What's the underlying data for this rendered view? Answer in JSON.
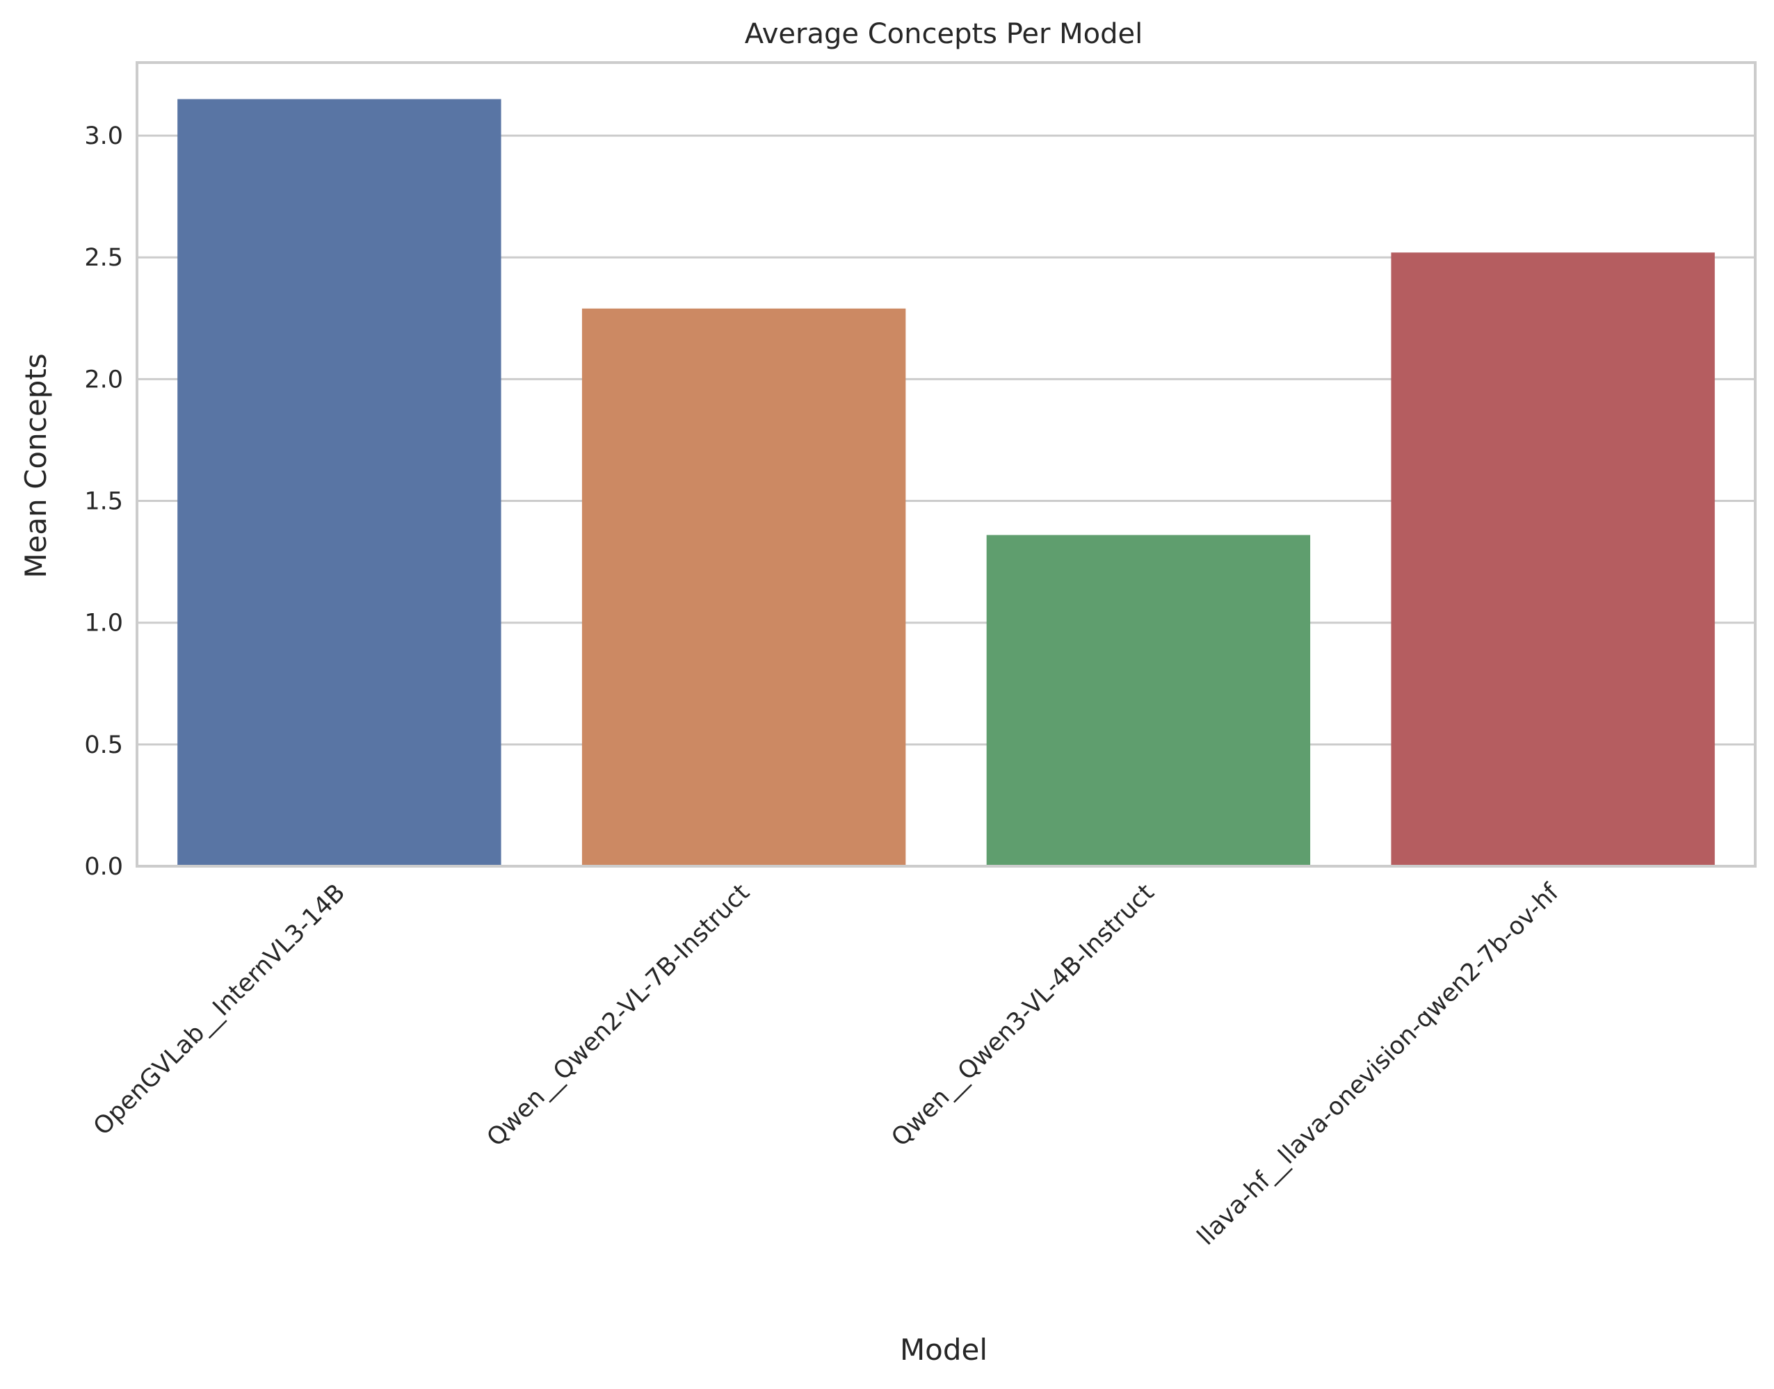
{
  "chart_data": {
    "type": "bar",
    "title": "Average Concepts Per Model",
    "xlabel": "Model",
    "ylabel": "Mean Concepts",
    "categories": [
      "OpenGVLab__InternVL3-14B",
      "Qwen__Qwen2-VL-7B-Instruct",
      "Qwen__Qwen3-VL-4B-Instruct",
      "llava-hf__llava-onevision-qwen2-7b-ov-hf"
    ],
    "values": [
      3.15,
      2.29,
      1.36,
      2.52
    ],
    "colors": [
      "#5975a4",
      "#cc8963",
      "#5f9e6e",
      "#b55d60"
    ],
    "ylim": [
      0,
      3.3
    ],
    "yticks": [
      "0.0",
      "0.5",
      "1.0",
      "1.5",
      "2.0",
      "2.5",
      "3.0"
    ],
    "grid": true,
    "legend": "none"
  }
}
